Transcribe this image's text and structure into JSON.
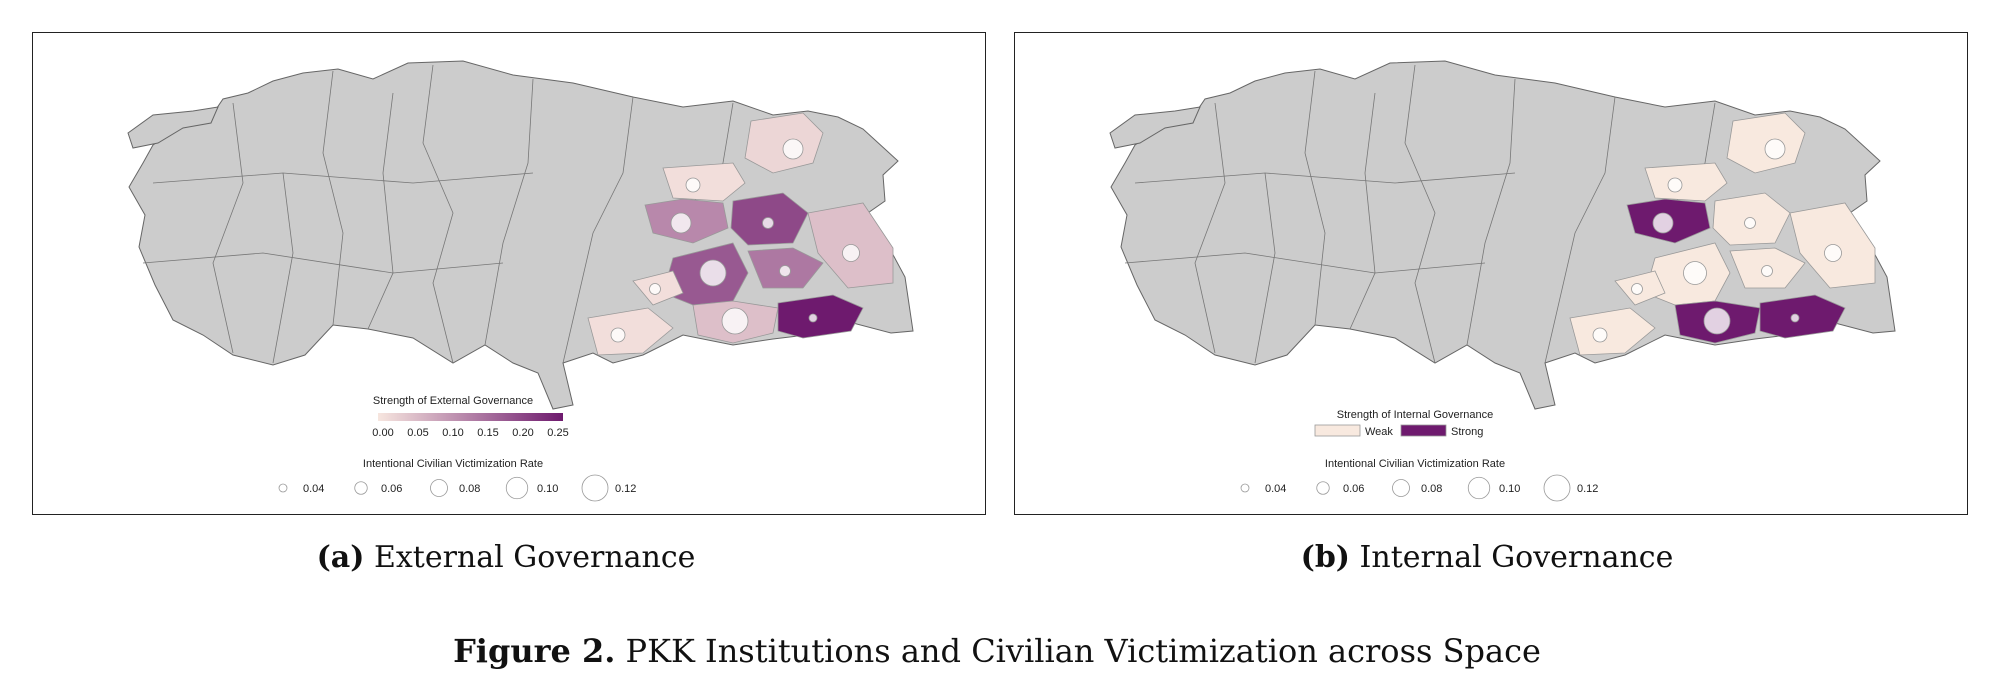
{
  "figure_caption": {
    "label": "Figure 2.",
    "text": "PKK Institutions and Civilian Victimization across Space"
  },
  "chart_data": [
    {
      "type": "map",
      "panel_label": "(a)",
      "caption": "External Governance",
      "base_color": "#cccccc",
      "color_legend": {
        "title": "Strength of External Governance",
        "type": "continuous",
        "ticks": [
          "0.00",
          "0.05",
          "0.10",
          "0.15",
          "0.20",
          "0.25"
        ],
        "range": [
          0,
          0.26
        ],
        "low_color": "#f7e6df",
        "high_color": "#6e1a6e"
      },
      "size_legend": {
        "title": "Intentional Civilian Victimization Rate",
        "values": [
          "0.04",
          "0.06",
          "0.08",
          "0.10",
          "0.12"
        ]
      },
      "regions": [
        {
          "strength": 0.02,
          "rate": 0.08
        },
        {
          "strength": 0.01,
          "rate": 0.06
        },
        {
          "strength": 0.12,
          "rate": 0.08
        },
        {
          "strength": 0.2,
          "rate": 0.05
        },
        {
          "strength": 0.18,
          "rate": 0.1
        },
        {
          "strength": 0.05,
          "rate": 0.07
        },
        {
          "strength": 0.14,
          "rate": 0.05
        },
        {
          "strength": 0.05,
          "rate": 0.1
        },
        {
          "strength": 0.26,
          "rate": 0.04
        },
        {
          "strength": 0.01,
          "rate": 0.06
        },
        {
          "strength": 0.01,
          "rate": 0.05
        }
      ]
    },
    {
      "type": "map",
      "panel_label": "(b)",
      "caption": "Internal Governance",
      "base_color": "#cccccc",
      "color_legend": {
        "title": "Strength of Internal Governance",
        "type": "categorical",
        "categories": [
          {
            "label": "Weak",
            "color": "#f8e9df"
          },
          {
            "label": "Strong",
            "color": "#6e1a6e"
          }
        ]
      },
      "size_legend": {
        "title": "Intentional Civilian Victimization Rate",
        "values": [
          "0.04",
          "0.06",
          "0.08",
          "0.10",
          "0.12"
        ]
      },
      "regions": [
        {
          "strength": "Weak",
          "rate": 0.08
        },
        {
          "strength": "Weak",
          "rate": 0.06
        },
        {
          "strength": "Strong",
          "rate": 0.08
        },
        {
          "strength": "Weak",
          "rate": 0.05
        },
        {
          "strength": "Weak",
          "rate": 0.09
        },
        {
          "strength": "Weak",
          "rate": 0.07
        },
        {
          "strength": "Weak",
          "rate": 0.05
        },
        {
          "strength": "Strong",
          "rate": 0.1
        },
        {
          "strength": "Strong",
          "rate": 0.04
        },
        {
          "strength": "Weak",
          "rate": 0.06
        },
        {
          "strength": "Weak",
          "rate": 0.05
        }
      ]
    }
  ]
}
